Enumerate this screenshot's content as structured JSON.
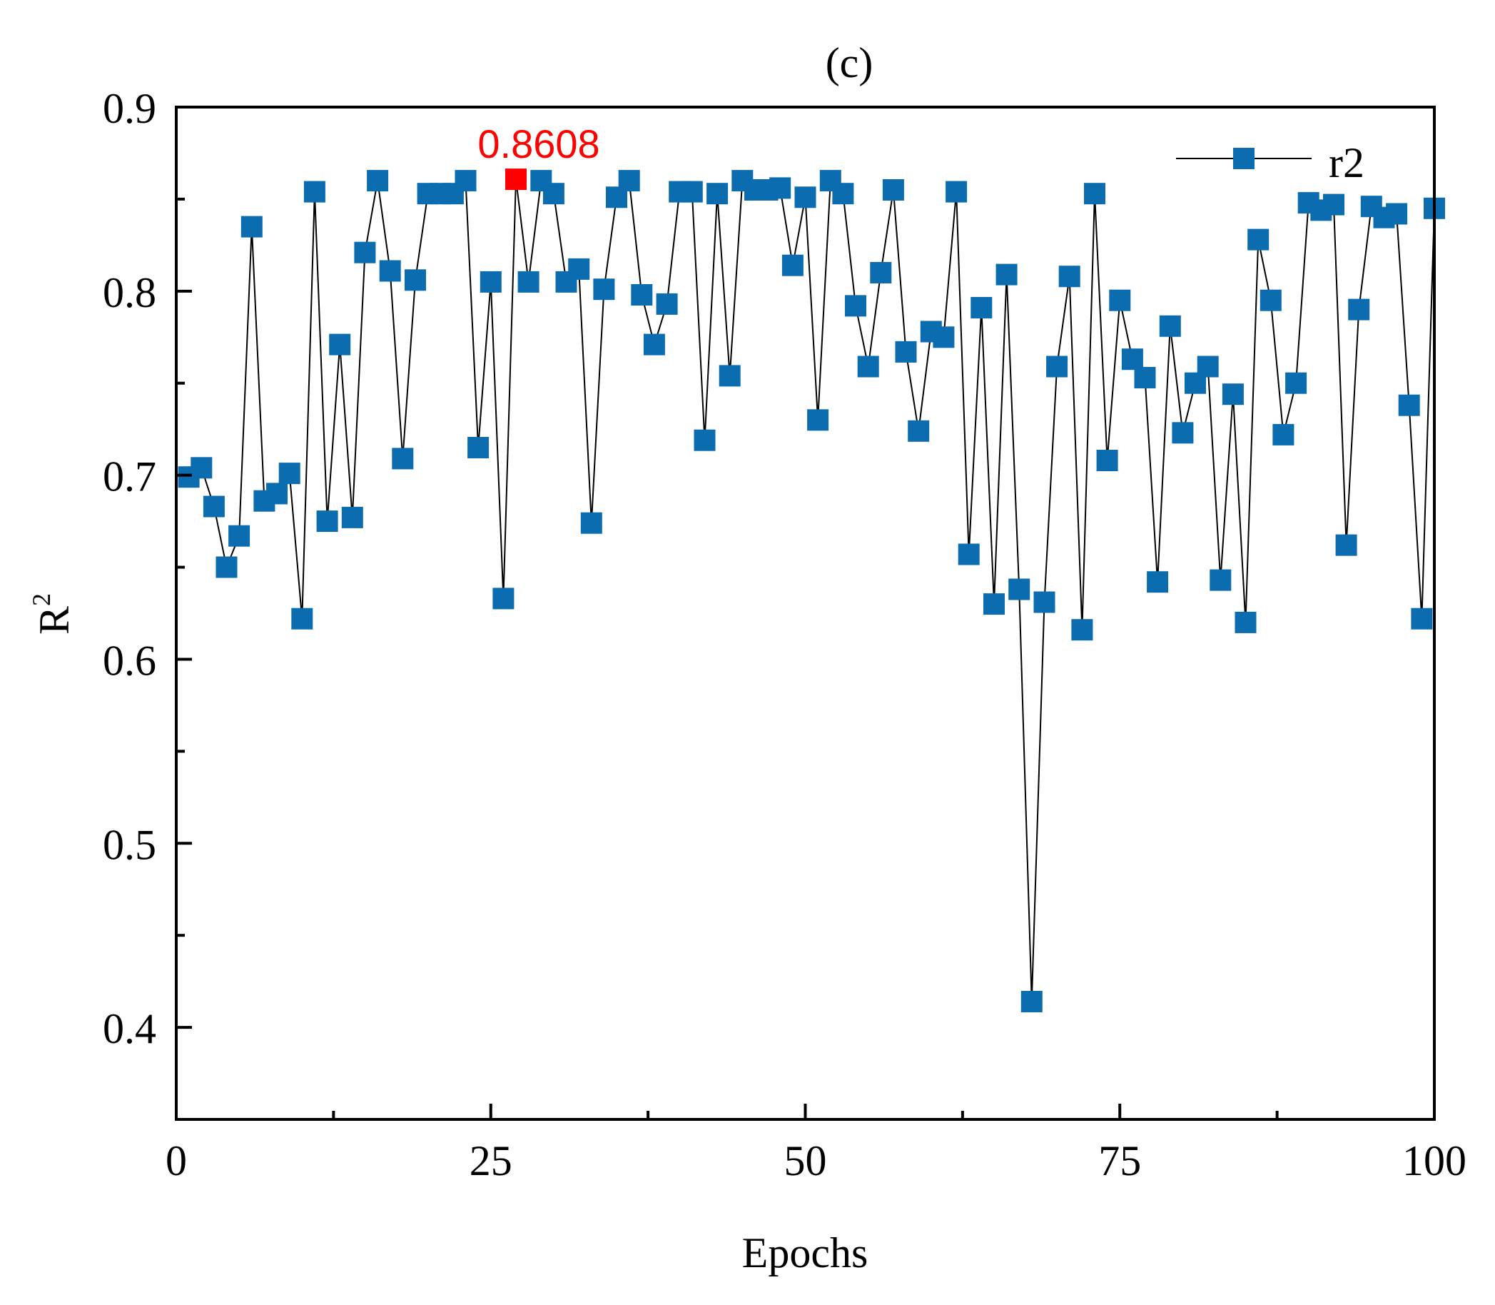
{
  "chart_data": {
    "type": "line",
    "title": "(c)",
    "xlabel": "Epochs",
    "ylabel_base": "R",
    "ylabel_sup": "2",
    "xlim": [
      0,
      100
    ],
    "ylim": [
      0.35,
      0.9
    ],
    "x_ticks": [
      0,
      25,
      50,
      75,
      100
    ],
    "x_tick_labels": [
      "0",
      "25",
      "50",
      "75",
      "100"
    ],
    "y_ticks": [
      0.4,
      0.5,
      0.6,
      0.7,
      0.8,
      0.9
    ],
    "y_tick_labels": [
      "0.4",
      "0.5",
      "0.6",
      "0.7",
      "0.8",
      "0.9"
    ],
    "grid": false,
    "legend_position": "top-right",
    "series": [
      {
        "name": "r2",
        "color": "#0b6cb0",
        "line_color": "#000000",
        "x": [
          1,
          2,
          3,
          4,
          5,
          6,
          7,
          8,
          9,
          10,
          11,
          12,
          13,
          14,
          15,
          16,
          17,
          18,
          19,
          20,
          21,
          22,
          23,
          24,
          25,
          26,
          27,
          28,
          29,
          30,
          31,
          32,
          33,
          34,
          35,
          36,
          37,
          38,
          39,
          40,
          41,
          42,
          43,
          44,
          45,
          46,
          47,
          48,
          49,
          50,
          51,
          52,
          53,
          54,
          55,
          56,
          57,
          58,
          59,
          60,
          61,
          62,
          63,
          64,
          65,
          66,
          67,
          68,
          69,
          70,
          71,
          72,
          73,
          74,
          75,
          76,
          77,
          78,
          79,
          80,
          81,
          82,
          83,
          84,
          85,
          86,
          87,
          88,
          89,
          90,
          91,
          92,
          93,
          94,
          95,
          96,
          97,
          98,
          99,
          100
        ],
        "values": [
          0.699,
          0.704,
          0.683,
          0.65,
          0.667,
          0.835,
          0.686,
          0.69,
          0.701,
          0.622,
          0.854,
          0.675,
          0.771,
          0.677,
          0.821,
          0.86,
          0.811,
          0.709,
          0.806,
          0.853,
          0.853,
          0.853,
          0.86,
          0.715,
          0.805,
          0.633,
          0.8608,
          0.805,
          0.86,
          0.853,
          0.805,
          0.812,
          0.674,
          0.801,
          0.851,
          0.86,
          0.798,
          0.771,
          0.793,
          0.854,
          0.854,
          0.719,
          0.853,
          0.754,
          0.86,
          0.855,
          0.855,
          0.856,
          0.814,
          0.851,
          0.73,
          0.86,
          0.853,
          0.792,
          0.759,
          0.81,
          0.855,
          0.767,
          0.724,
          0.778,
          0.775,
          0.854,
          0.657,
          0.791,
          0.63,
          0.809,
          0.638,
          0.414,
          0.631,
          0.759,
          0.808,
          0.616,
          0.853,
          0.708,
          0.795,
          0.763,
          0.753,
          0.642,
          0.781,
          0.723,
          0.75,
          0.759,
          0.643,
          0.744,
          0.62,
          0.828,
          0.795,
          0.722,
          0.75,
          0.848,
          0.844,
          0.847,
          0.662,
          0.79,
          0.846,
          0.84,
          0.842,
          0.738,
          0.622,
          0.845
        ]
      }
    ],
    "annotations": [
      {
        "text": "0.8608",
        "x": 27,
        "y": 0.8608,
        "color": "#ff0000"
      }
    ]
  }
}
